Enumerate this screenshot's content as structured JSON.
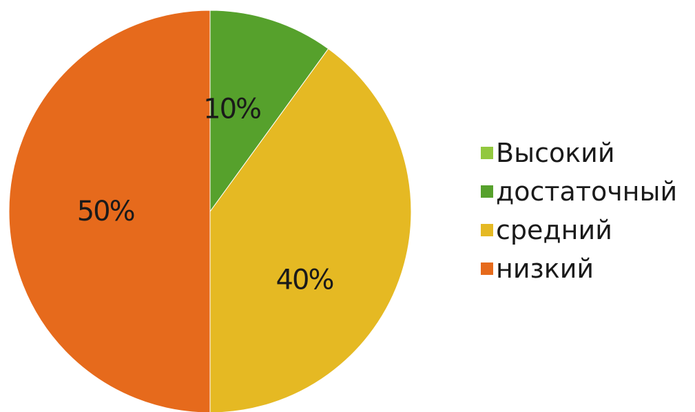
{
  "chart_data": {
    "type": "pie",
    "categories": [
      "Высокий",
      "достаточный",
      "средний",
      "низкий"
    ],
    "values": [
      0,
      10,
      40,
      50
    ],
    "value_labels": [
      "",
      "10%",
      "40%",
      "50%"
    ],
    "colors": [
      "#92c83e",
      "#56a12c",
      "#e5b923",
      "#e66a1c"
    ],
    "legend": {
      "placement": "right",
      "entries": [
        "Высокий",
        "достаточный",
        "средний",
        "низкий"
      ]
    },
    "start_angle": "12 o'clock",
    "direction": "clockwise"
  }
}
